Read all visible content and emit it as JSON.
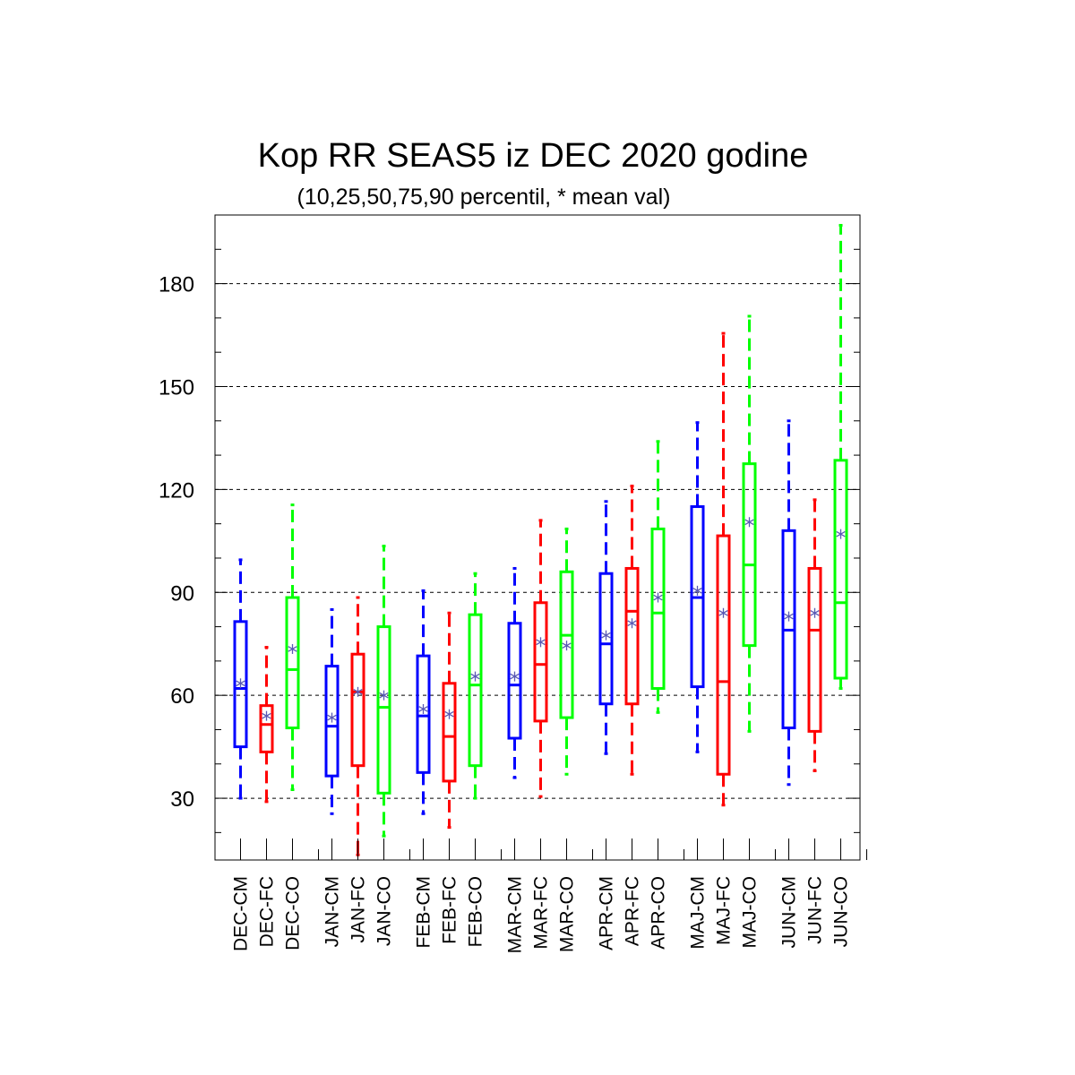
{
  "chart_data": {
    "type": "box",
    "title": "Kop RR SEAS5 iz DEC 2020 godine",
    "subtitle": "(10,25,50,75,90 percentil, * mean val)",
    "ylim": [
      12,
      200
    ],
    "yticks": [
      30,
      60,
      90,
      120,
      150,
      180
    ],
    "grid": "horizontal dashed",
    "series_colors": {
      "CM": "#0000ff",
      "FC": "#ff0000",
      "CO": "#00ff00"
    },
    "mean_marker_color": "#5a5ab4",
    "boxes": [
      {
        "label": "DEC-CM",
        "type": "CM",
        "p10": 30,
        "p25": 45,
        "p50": 62,
        "p75": 81.5,
        "p90": 99.5,
        "mean": 63.5
      },
      {
        "label": "DEC-FC",
        "type": "FC",
        "p10": 29,
        "p25": 43.5,
        "p50": 51.5,
        "p75": 57,
        "p90": 74,
        "mean": 54
      },
      {
        "label": "DEC-CO",
        "type": "CO",
        "p10": 32.5,
        "p25": 50.5,
        "p50": 67.5,
        "p75": 88.5,
        "p90": 115.5,
        "mean": 73.5
      },
      {
        "label": "JAN-CM",
        "type": "CM",
        "p10": 25.5,
        "p25": 36.5,
        "p50": 51,
        "p75": 68.5,
        "p90": 85,
        "mean": 53.5
      },
      {
        "label": "JAN-FC",
        "type": "FC",
        "p10": 13.5,
        "p25": 39.5,
        "p50": 61,
        "p75": 72,
        "p90": 88.5,
        "mean": 61
      },
      {
        "label": "JAN-CO",
        "type": "CO",
        "p10": 19,
        "p25": 31.5,
        "p50": 56.5,
        "p75": 80,
        "p90": 103.5,
        "mean": 60
      },
      {
        "label": "FEB-CM",
        "type": "CM",
        "p10": 25.5,
        "p25": 37.5,
        "p50": 54,
        "p75": 71.5,
        "p90": 90.5,
        "mean": 56
      },
      {
        "label": "FEB-FC",
        "type": "FC",
        "p10": 21.5,
        "p25": 35,
        "p50": 48,
        "p75": 63.5,
        "p90": 84,
        "mean": 54.5
      },
      {
        "label": "FEB-CO",
        "type": "CO",
        "p10": 30,
        "p25": 39.5,
        "p50": 63,
        "p75": 83.5,
        "p90": 95.5,
        "mean": 65.5
      },
      {
        "label": "MAR-CM",
        "type": "CM",
        "p10": 36,
        "p25": 47.5,
        "p50": 63,
        "p75": 81,
        "p90": 97,
        "mean": 65.5
      },
      {
        "label": "MAR-FC",
        "type": "FC",
        "p10": 30.5,
        "p25": 52.5,
        "p50": 69,
        "p75": 87,
        "p90": 111,
        "mean": 75.5
      },
      {
        "label": "MAR-CO",
        "type": "CO",
        "p10": 37,
        "p25": 53.5,
        "p50": 77.5,
        "p75": 96,
        "p90": 108.5,
        "mean": 74.5
      },
      {
        "label": "APR-CM",
        "type": "CM",
        "p10": 43,
        "p25": 57.5,
        "p50": 75,
        "p75": 95.5,
        "p90": 116.5,
        "mean": 77.5
      },
      {
        "label": "APR-FC",
        "type": "FC",
        "p10": 37,
        "p25": 57.5,
        "p50": 84.5,
        "p75": 97,
        "p90": 121,
        "mean": 81
      },
      {
        "label": "APR-CO",
        "type": "CO",
        "p10": 55,
        "p25": 62,
        "p50": 84,
        "p75": 108.5,
        "p90": 134,
        "mean": 88.5
      },
      {
        "label": "MAJ-CM",
        "type": "CM",
        "p10": 43.5,
        "p25": 62.5,
        "p50": 88.5,
        "p75": 115,
        "p90": 139.5,
        "mean": 90.5
      },
      {
        "label": "MAJ-FC",
        "type": "FC",
        "p10": 28,
        "p25": 37,
        "p50": 64,
        "p75": 106.5,
        "p90": 165.5,
        "mean": 84
      },
      {
        "label": "MAJ-CO",
        "type": "CO",
        "p10": 49.5,
        "p25": 74.5,
        "p50": 98,
        "p75": 127.5,
        "p90": 170.5,
        "mean": 110.5
      },
      {
        "label": "JUN-CM",
        "type": "CM",
        "p10": 34,
        "p25": 50.5,
        "p50": 79,
        "p75": 108,
        "p90": 140,
        "mean": 83
      },
      {
        "label": "JUN-FC",
        "type": "FC",
        "p10": 38,
        "p25": 49.5,
        "p50": 79,
        "p75": 97,
        "p90": 117,
        "mean": 84
      },
      {
        "label": "JUN-CO",
        "type": "CO",
        "p10": 62,
        "p25": 65,
        "p50": 87,
        "p75": 128.5,
        "p90": 197,
        "mean": 107
      }
    ]
  }
}
